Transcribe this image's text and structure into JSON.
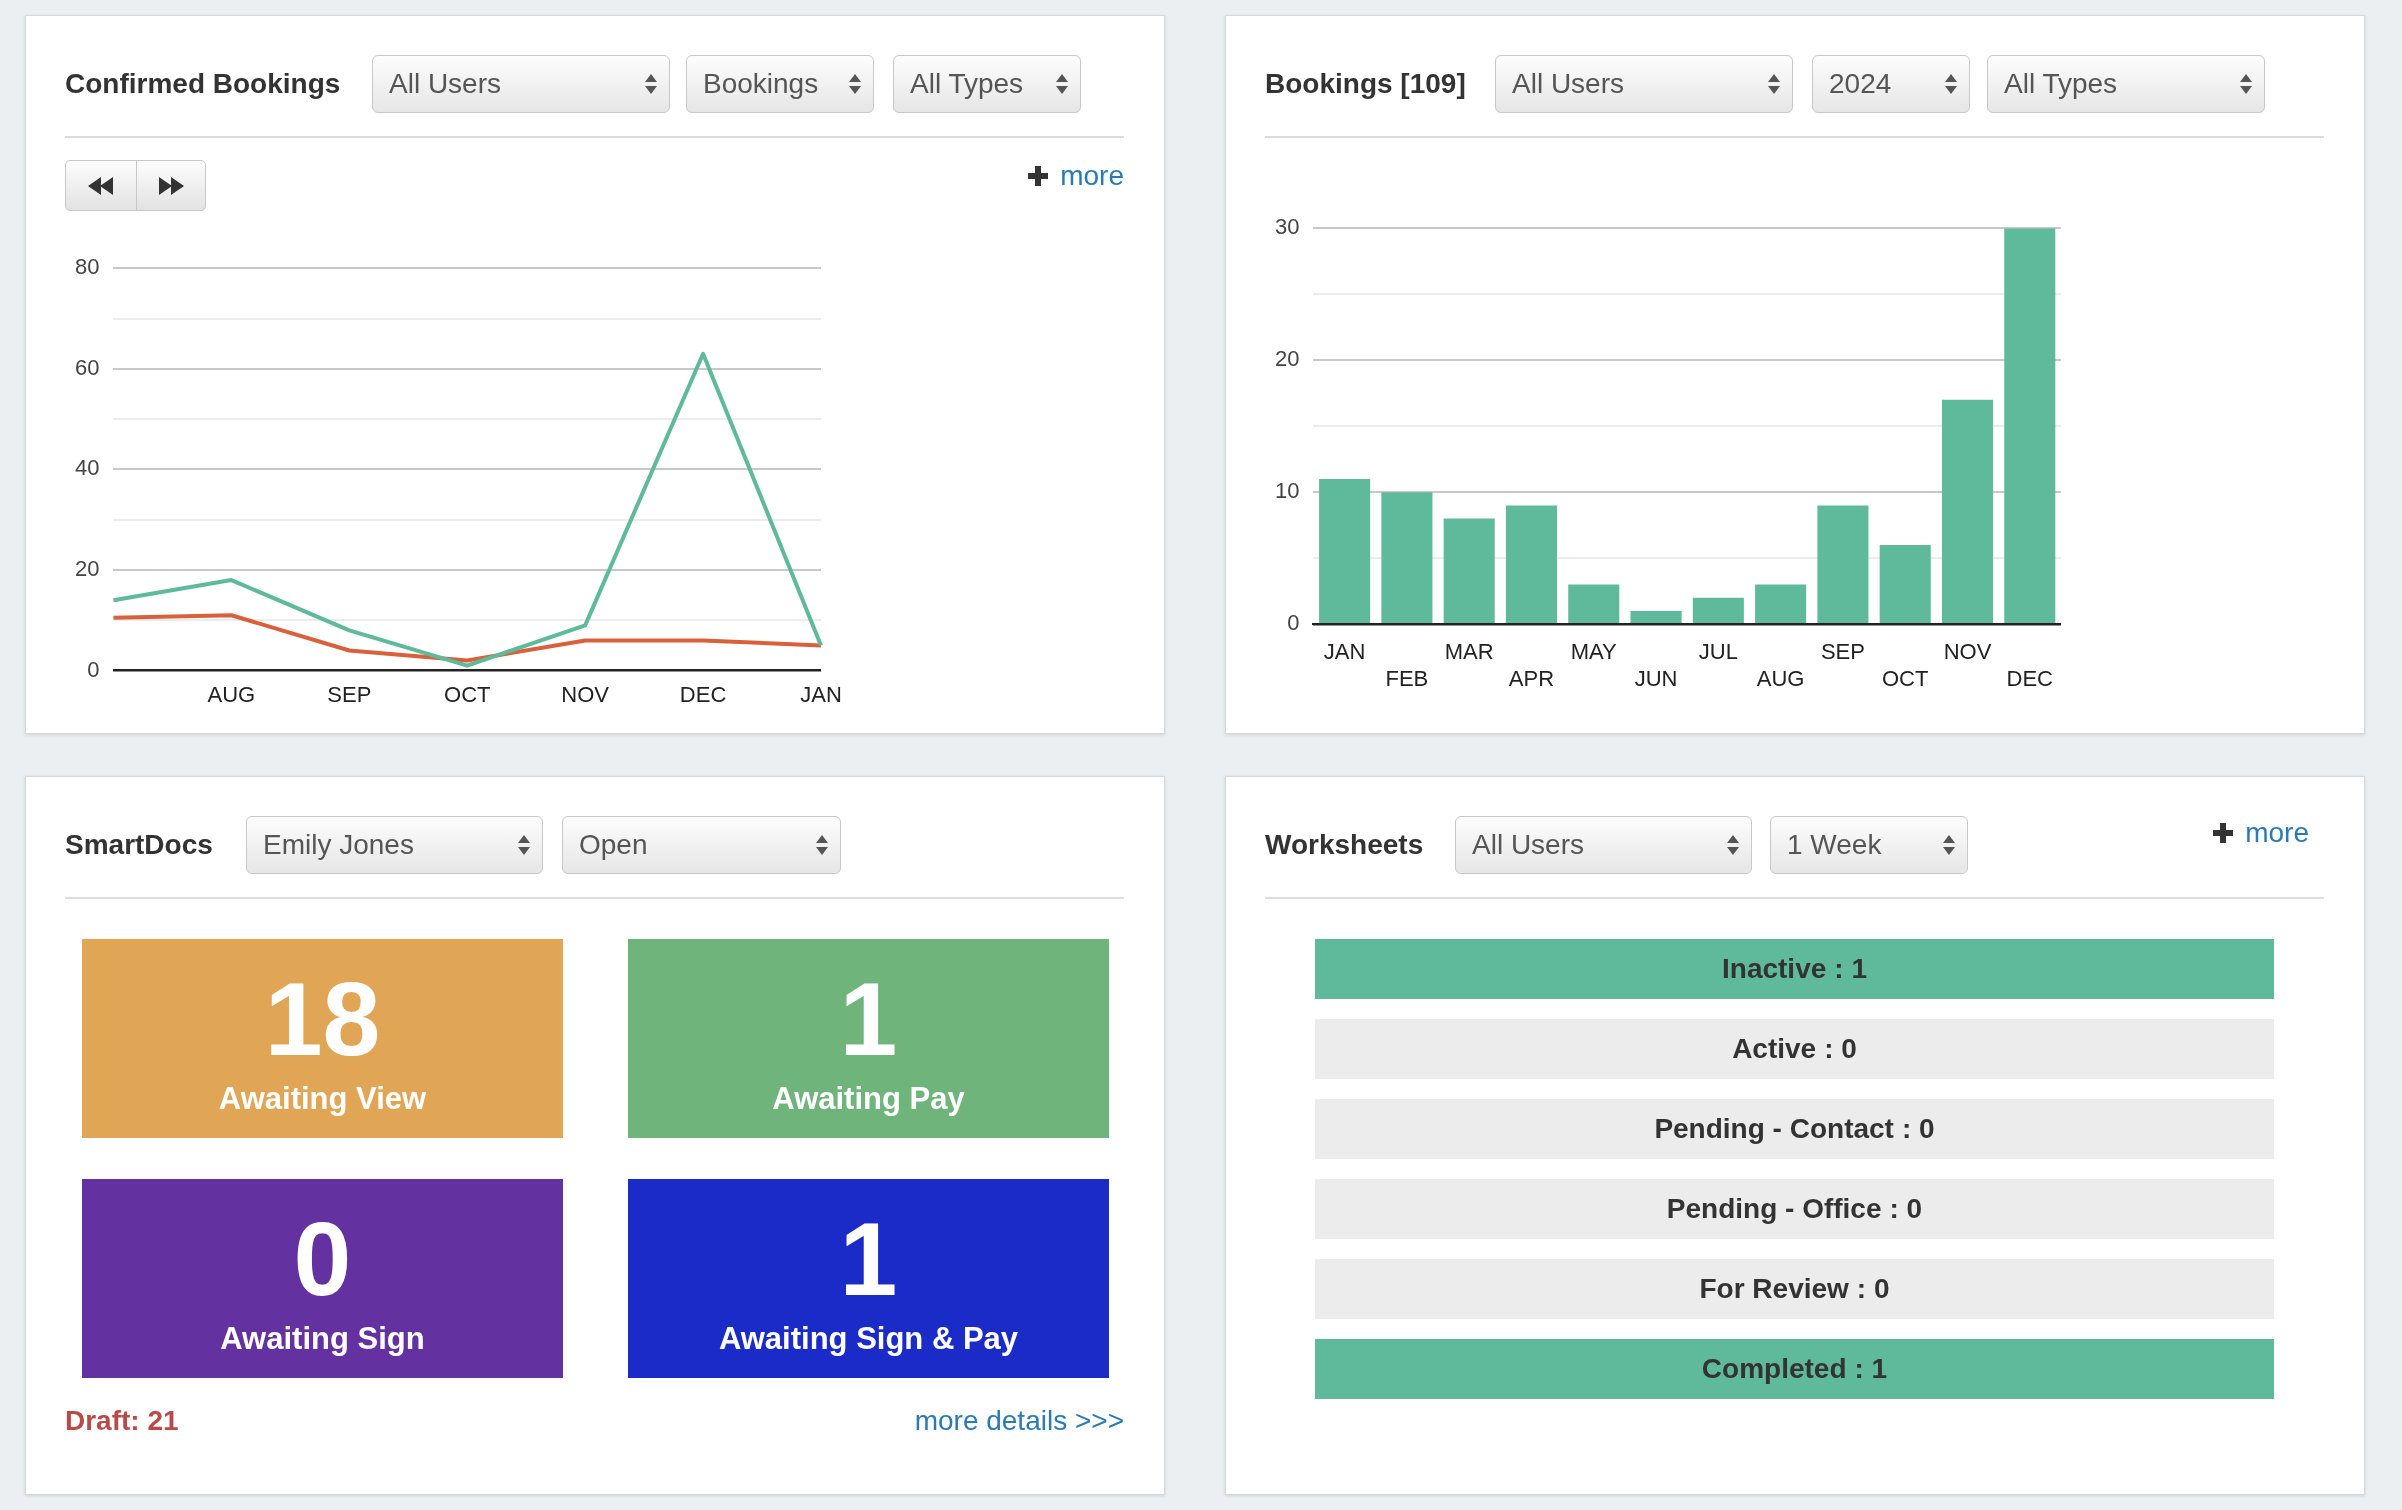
{
  "chart_data": [
    {
      "type": "line",
      "title": "Confirmed Bookings",
      "annotations": [
        "All Users",
        "Bookings",
        "All Types",
        "more"
      ],
      "categories": [
        null,
        "AUG",
        "SEP",
        "OCT",
        "NOV",
        "DEC",
        "JAN"
      ],
      "ylim": [
        0,
        80
      ],
      "yticks": [
        0,
        {
          "value": 10,
          "label": null
        },
        20,
        {
          "value": 30,
          "label": null
        },
        40,
        {
          "value": 50,
          "label": null
        },
        60,
        {
          "value": 70,
          "label": null
        },
        80
      ],
      "grid": "y",
      "series": [
        {
          "color": "#5fba9c",
          "values": [
            14,
            18,
            8,
            1,
            9,
            63,
            5
          ]
        },
        {
          "color": "#d9603b",
          "values": [
            10.5,
            11,
            4,
            2,
            6,
            6,
            5
          ]
        }
      ]
    },
    {
      "type": "bar",
      "title": "Bookings [109]",
      "annotations": [
        "All Users",
        "2024",
        "All Types"
      ],
      "categories": [
        "JAN",
        "FEB",
        "MAR",
        "APR",
        "MAY",
        "JUN",
        "JUL",
        "AUG",
        "SEP",
        "OCT",
        "NOV",
        "DEC"
      ],
      "values": [
        11,
        10,
        8,
        9,
        3,
        1,
        2,
        3,
        9,
        6,
        17,
        30
      ],
      "color": "#5fba9c",
      "ylim": [
        0,
        30
      ],
      "yticks": [
        0,
        {
          "value": 5,
          "label": null
        },
        10,
        {
          "value": 15,
          "label": null
        },
        20,
        {
          "value": 25,
          "label": null
        },
        30
      ],
      "grid": "y"
    },
    {
      "type": "other",
      "title": "SmartDocs",
      "annotations": [
        "Emily Jones",
        "Open",
        "Draft: 21",
        "more details >>>"
      ],
      "categories": [
        "Awaiting View",
        "Awaiting Pay",
        "Awaiting Sign",
        "Awaiting Sign & Pay"
      ],
      "values": [
        18,
        1,
        0,
        1
      ],
      "data_labels": true,
      "colors": [
        "#e0a656",
        "#6fb47a",
        "#6332a0",
        "#1b2bc8"
      ]
    },
    {
      "type": "other",
      "title": "Worksheets",
      "annotations": [
        "All Users",
        "1 Week",
        "more"
      ],
      "categories": [
        "Inactive",
        "Active",
        "Pending - Contact",
        "Pending - Office",
        "For Review",
        "Completed"
      ],
      "value_labels": [
        ": 1",
        ": 0",
        ": 0",
        ": 0",
        ": 0",
        ": 1"
      ],
      "colors": [
        "#5fba9c",
        "#ececec",
        "#ececec",
        "#ececec",
        "#ececec",
        "#5fba9c"
      ]
    }
  ]
}
